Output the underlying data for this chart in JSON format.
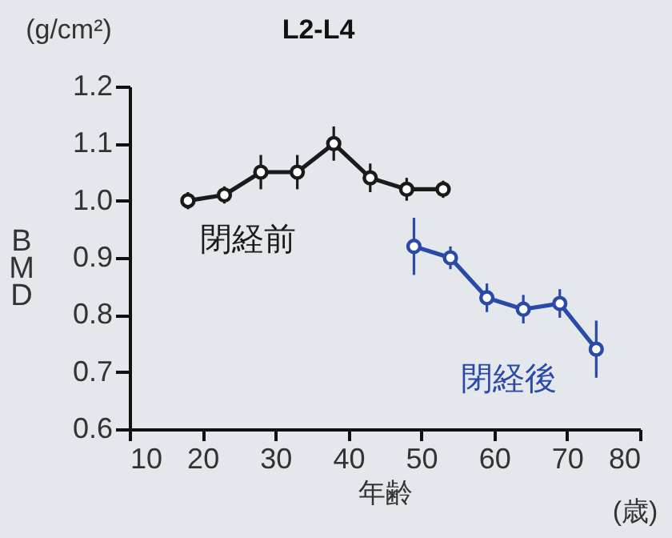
{
  "chart_data": {
    "type": "line",
    "title": "L2-L4",
    "xlabel": "年齢",
    "ylabel": "BMD",
    "annotations": [
      "(g/cm²)",
      "(歳)"
    ],
    "xlim": [
      10,
      80
    ],
    "xticks": [
      10,
      20,
      30,
      40,
      50,
      60,
      70,
      80
    ],
    "ylim": [
      0.6,
      1.2
    ],
    "yticks": [
      0.6,
      0.7,
      0.8,
      0.9,
      {
        "value": 1,
        "label": "1.0"
      },
      1.1,
      1.2
    ],
    "grid": false,
    "marker": "circle",
    "line_style": "solid",
    "series": [
      {
        "name": "閉経前",
        "color": "#1a1a1a",
        "x": [
          18,
          23,
          28,
          33,
          38,
          43,
          48,
          53
        ],
        "values": [
          1.0,
          1.01,
          1.05,
          1.05,
          1.1,
          1.04,
          1.02,
          1.02
        ],
        "errors": [
          0.015,
          0.015,
          0.03,
          0.03,
          0.03,
          0.025,
          0.02,
          0.015
        ]
      },
      {
        "name": "閉経後",
        "color": "#2a4aa8",
        "x": [
          49,
          54,
          59,
          64,
          69,
          74
        ],
        "values": [
          0.92,
          0.9,
          0.83,
          0.81,
          0.82,
          0.74
        ],
        "errors": [
          0.05,
          0.02,
          0.025,
          0.025,
          0.025,
          0.05
        ]
      }
    ]
  }
}
